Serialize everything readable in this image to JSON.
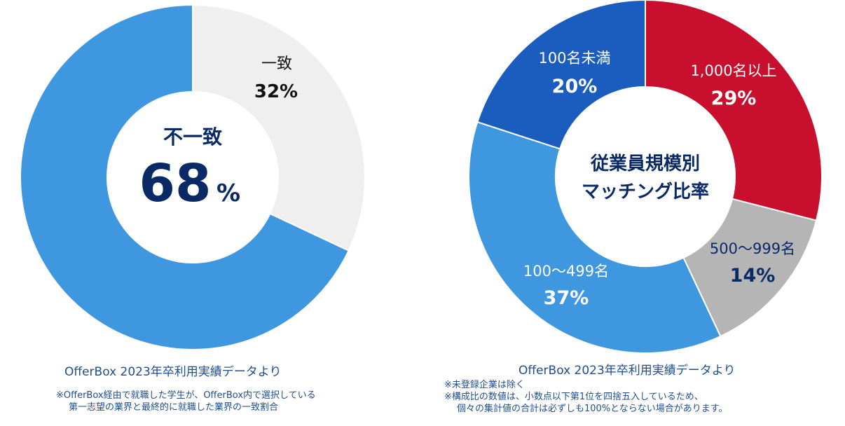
{
  "chart_data": [
    {
      "type": "pie",
      "variant": "donut",
      "slices": [
        {
          "label": "一致",
          "value": 32,
          "value_label": "32%",
          "color": "#efefef",
          "text_color": "#111111"
        },
        {
          "label": "不一致",
          "value": 68,
          "value_label": "68",
          "color": "#3e97df",
          "text_color": "#0a2a66"
        }
      ],
      "center": {
        "title": "不一致",
        "value": "68",
        "unit": "%"
      },
      "source": "OfferBox 2023年卒利用実績データより",
      "notes": [
        "※OfferBox経由で就職した学生が、OfferBox内で選択している",
        "第一志望の業界と最終的に就職した業界の一致割合"
      ]
    },
    {
      "type": "pie",
      "variant": "donut",
      "center": {
        "title_lines": [
          "従業員規模別",
          "マッチング比率"
        ]
      },
      "slices": [
        {
          "label": "1,000名以上",
          "value": 29,
          "value_label": "29%",
          "color": "#c8102e",
          "text_color": "#ffffff"
        },
        {
          "label": "500〜999名",
          "value": 14,
          "value_label": "14%",
          "color": "#b5b5b5",
          "text_color": "#0a2a66"
        },
        {
          "label": "100〜499名",
          "value": 37,
          "value_label": "37%",
          "color": "#3e97df",
          "text_color": "#ffffff"
        },
        {
          "label": "100名未満",
          "value": 20,
          "value_label": "20%",
          "color": "#1a5dbf",
          "text_color": "#ffffff"
        }
      ],
      "source": "OfferBox 2023年卒利用実績データより",
      "notes": [
        "※未登録企業は除く",
        "※構成比の数値は、小数点以下第1位を四捨五入しているため、",
        "個々の集計値の合計は必ずしも100%とならない場合があります。"
      ]
    }
  ]
}
